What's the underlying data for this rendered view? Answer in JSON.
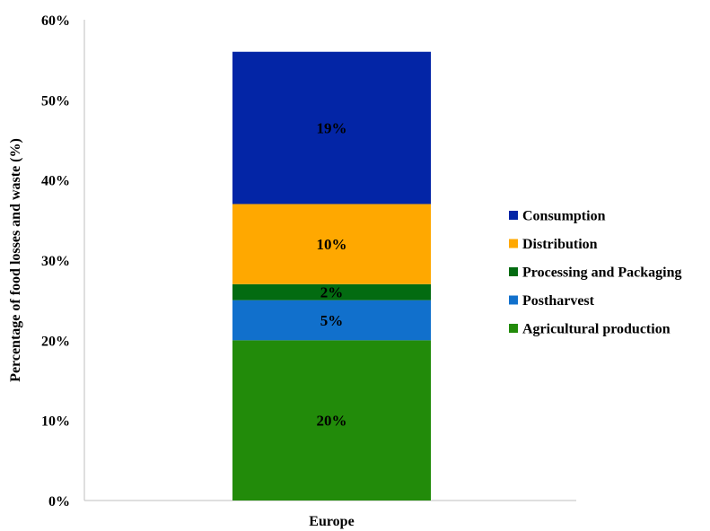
{
  "chart_data": {
    "type": "bar",
    "stacked": true,
    "categories": [
      "Europe"
    ],
    "ylabel": "Percentage of food losses and waste (%)",
    "xlabel": "",
    "ylim": [
      0,
      60
    ],
    "yticks": [
      "0%",
      "10%",
      "20%",
      "30%",
      "40%",
      "50%",
      "60%"
    ],
    "grid": false,
    "legend_position": "right",
    "series": [
      {
        "name": "Agricultural production",
        "values": [
          20
        ],
        "label": "20%",
        "color": "#228B0A"
      },
      {
        "name": "Postharvest",
        "values": [
          5
        ],
        "label": "5%",
        "color": "#1170CC"
      },
      {
        "name": "Processing and Packaging",
        "values": [
          2
        ],
        "label": "2%",
        "color": "#036B11"
      },
      {
        "name": "Distribution",
        "values": [
          10
        ],
        "label": "10%",
        "color": "#FFA800"
      },
      {
        "name": "Consumption",
        "values": [
          19
        ],
        "label": "19%",
        "color": "#0325A6"
      }
    ]
  }
}
